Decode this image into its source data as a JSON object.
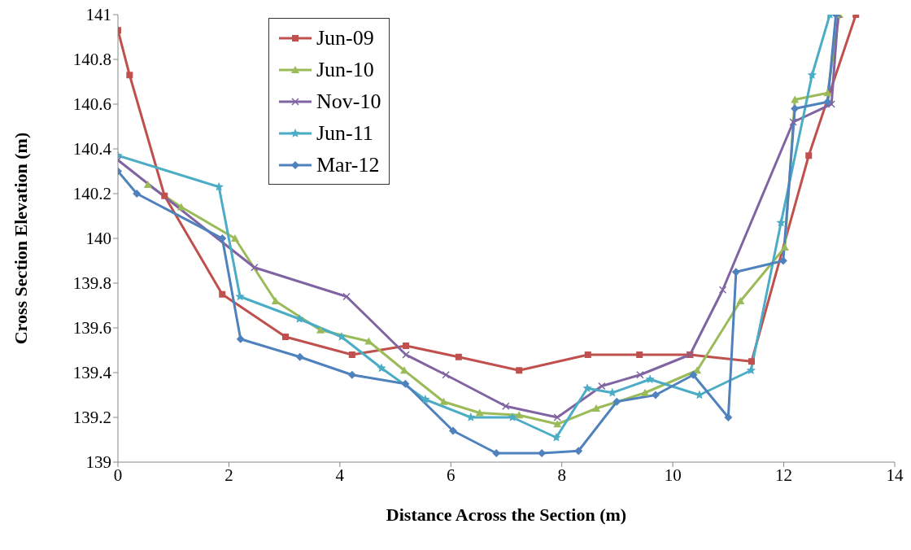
{
  "chart_data": {
    "type": "line",
    "xlabel": "Distance Across the Section (m)",
    "ylabel": "Cross Section Elevation (m)",
    "xlim": [
      0,
      14
    ],
    "xticks": [
      0,
      2,
      4,
      6,
      8,
      10,
      12,
      14
    ],
    "ylim": [
      139,
      141
    ],
    "yticks": [
      139,
      139.2,
      139.4,
      139.6,
      139.8,
      140,
      140.2,
      140.4,
      140.6,
      140.8,
      141
    ],
    "grid": false,
    "legend": "top left",
    "line_style": "solid",
    "series": [
      {
        "name": "Jun-09",
        "color": "#c0504d",
        "marker": "square",
        "x": [
          0,
          0.21,
          0.84,
          1.88,
          3.02,
          4.22,
          5.19,
          6.14,
          7.23,
          8.47,
          9.4,
          10.31,
          11.42,
          12.45,
          13.3
        ],
        "values": [
          140.93,
          140.73,
          140.19,
          139.75,
          139.56,
          139.48,
          139.52,
          139.47,
          139.41,
          139.48,
          139.48,
          139.48,
          139.45,
          140.37,
          141
        ]
      },
      {
        "name": "Jun-10",
        "color": "#9bbb59",
        "marker": "triangle",
        "x": [
          0.54,
          1.14,
          2.11,
          2.84,
          3.65,
          4.52,
          5.16,
          5.87,
          6.52,
          7.23,
          7.92,
          8.62,
          9.5,
          10.44,
          11.22,
          12.02,
          12.2,
          12.79,
          13.0
        ],
        "values": [
          140.24,
          140.14,
          140.0,
          139.72,
          139.59,
          139.54,
          139.41,
          139.27,
          139.22,
          139.21,
          139.17,
          139.24,
          139.31,
          139.41,
          139.72,
          139.96,
          140.62,
          140.65,
          141
        ]
      },
      {
        "name": "Nov-10",
        "color": "#8064a2",
        "marker": "cross",
        "x": [
          0,
          2.46,
          4.12,
          5.19,
          5.91,
          6.99,
          7.92,
          8.72,
          9.41,
          10.31,
          10.9,
          12.17,
          12.86,
          12.98
        ],
        "values": [
          140.35,
          139.87,
          139.74,
          139.48,
          139.39,
          139.25,
          139.2,
          139.34,
          139.39,
          139.48,
          139.77,
          140.52,
          140.6,
          141
        ]
      },
      {
        "name": "Jun-11",
        "color": "#4bacc6",
        "marker": "star",
        "x": [
          0,
          1.82,
          2.2,
          3.27,
          4.03,
          4.75,
          5.54,
          6.36,
          7.11,
          7.9,
          8.46,
          8.91,
          9.59,
          10.48,
          11.41,
          11.95,
          12.51,
          12.83
        ],
        "values": [
          140.37,
          140.23,
          139.74,
          139.64,
          139.56,
          139.42,
          139.28,
          139.2,
          139.2,
          139.11,
          139.33,
          139.31,
          139.37,
          139.3,
          139.41,
          140.07,
          140.73,
          141
        ]
      },
      {
        "name": "Mar-12",
        "color": "#4f81bd",
        "marker": "diamond",
        "x": [
          0,
          0.34,
          1.88,
          2.21,
          3.28,
          4.22,
          5.18,
          6.04,
          6.82,
          7.64,
          8.3,
          8.99,
          9.69,
          10.37,
          11.0,
          11.14,
          11.99,
          12.2,
          12.79,
          12.94
        ],
        "values": [
          140.3,
          140.2,
          140.0,
          139.55,
          139.47,
          139.39,
          139.35,
          139.14,
          139.04,
          139.04,
          139.05,
          139.27,
          139.3,
          139.39,
          139.2,
          139.85,
          139.9,
          140.58,
          140.61,
          141
        ]
      }
    ]
  }
}
